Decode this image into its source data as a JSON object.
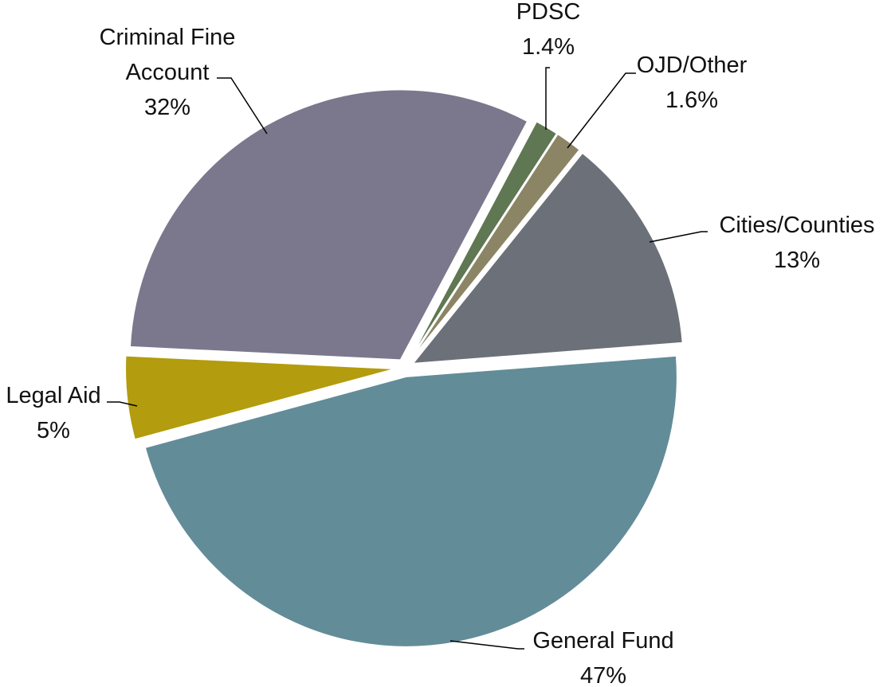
{
  "chart_data": {
    "type": "pie",
    "categories": [
      "PDSC",
      "OJD/Other",
      "Cities/Counties",
      "General Fund",
      "Legal Aid",
      "Criminal Fine Account"
    ],
    "values": [
      1.4,
      1.6,
      13,
      47,
      5,
      32
    ],
    "value_labels": [
      "1.4%",
      "1.6%",
      "13%",
      "47%",
      "5%",
      "32%"
    ],
    "colors": [
      "#5f7752",
      "#8c8565",
      "#6b7079",
      "#628c98",
      "#b39c0d",
      "#7b778c"
    ]
  }
}
